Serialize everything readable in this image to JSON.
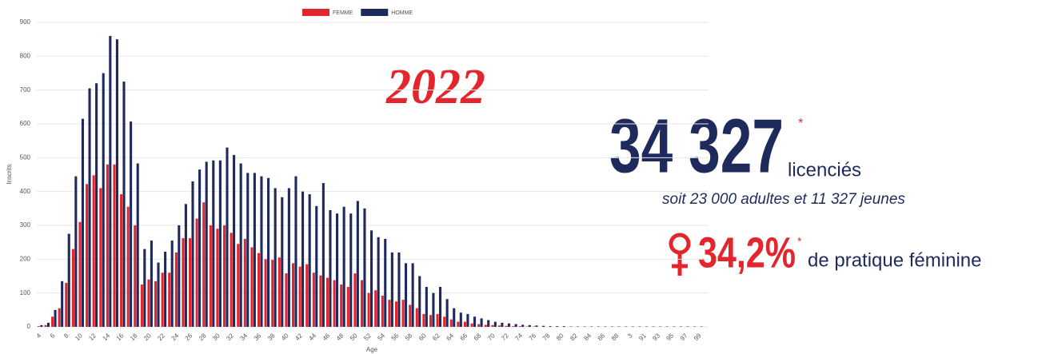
{
  "chart_data": {
    "type": "bar",
    "x_label": "Age",
    "y_label": "Inscrits",
    "categories": [
      4,
      null,
      6,
      null,
      8,
      null,
      10,
      null,
      12,
      null,
      14,
      null,
      16,
      null,
      18,
      null,
      20,
      null,
      22,
      null,
      24,
      null,
      26,
      null,
      28,
      null,
      30,
      null,
      32,
      null,
      34,
      null,
      36,
      null,
      38,
      null,
      40,
      null,
      42,
      null,
      44,
      null,
      46,
      null,
      48,
      null,
      50,
      null,
      52,
      null,
      54,
      null,
      56,
      null,
      58,
      null,
      60,
      null,
      62,
      null,
      64,
      null,
      66,
      null,
      68,
      null,
      70,
      null,
      72,
      null,
      74,
      null,
      76,
      null,
      78,
      null,
      80,
      null,
      82,
      null,
      84,
      null,
      86,
      null,
      88,
      null,
      3,
      null,
      91,
      null,
      93,
      null,
      95,
      null,
      97,
      null,
      99
    ],
    "series": [
      {
        "name": "FEMME",
        "color": "#e3262e",
        "values": [
          2,
          5,
          30,
          55,
          130,
          230,
          310,
          422,
          448,
          410,
          480,
          480,
          392,
          355,
          300,
          125,
          140,
          135,
          160,
          160,
          220,
          262,
          262,
          320,
          368,
          300,
          290,
          300,
          278,
          245,
          260,
          235,
          218,
          200,
          198,
          205,
          158,
          188,
          178,
          185,
          160,
          152,
          145,
          138,
          125,
          118,
          158,
          138,
          100,
          108,
          92,
          80,
          75,
          80,
          65,
          55,
          38,
          35,
          38,
          30,
          22,
          15,
          15,
          10,
          8,
          6,
          5,
          4,
          3,
          2,
          2,
          1,
          1,
          0,
          0,
          0,
          0,
          0,
          0,
          0,
          0,
          0,
          0,
          0,
          0,
          0,
          0,
          0,
          0,
          0,
          0,
          0,
          0,
          0,
          0,
          0,
          0
        ]
      },
      {
        "name": "HOMME",
        "color": "#1f2a5c",
        "values": [
          5,
          12,
          50,
          135,
          275,
          445,
          615,
          705,
          720,
          750,
          860,
          850,
          725,
          607,
          483,
          230,
          255,
          190,
          222,
          255,
          300,
          363,
          430,
          465,
          488,
          492,
          492,
          530,
          508,
          483,
          455,
          455,
          445,
          440,
          410,
          383,
          410,
          445,
          400,
          392,
          357,
          425,
          345,
          335,
          355,
          335,
          372,
          350,
          285,
          265,
          260,
          220,
          220,
          188,
          188,
          150,
          118,
          100,
          118,
          82,
          55,
          42,
          38,
          30,
          25,
          20,
          15,
          12,
          10,
          8,
          6,
          5,
          4,
          3,
          2,
          2,
          2,
          1,
          1,
          1,
          1,
          1,
          1,
          1,
          1,
          1,
          1,
          1,
          1,
          1,
          1,
          1,
          1,
          1,
          1,
          1,
          1
        ]
      }
    ],
    "ylim": [
      0,
      900
    ],
    "yticks": [
      0,
      100,
      200,
      300,
      400,
      500,
      600,
      700,
      800,
      900
    ],
    "grid": true,
    "legend": "top"
  },
  "side": {
    "year": "2022",
    "total": "34 327",
    "total_star": "*",
    "total_unit": "licenciés",
    "detail": "soit 23 000 adultes et 11 327 jeunes",
    "female_share": "34,2%",
    "female_star": "*",
    "female_text": "de pratique féminine"
  }
}
